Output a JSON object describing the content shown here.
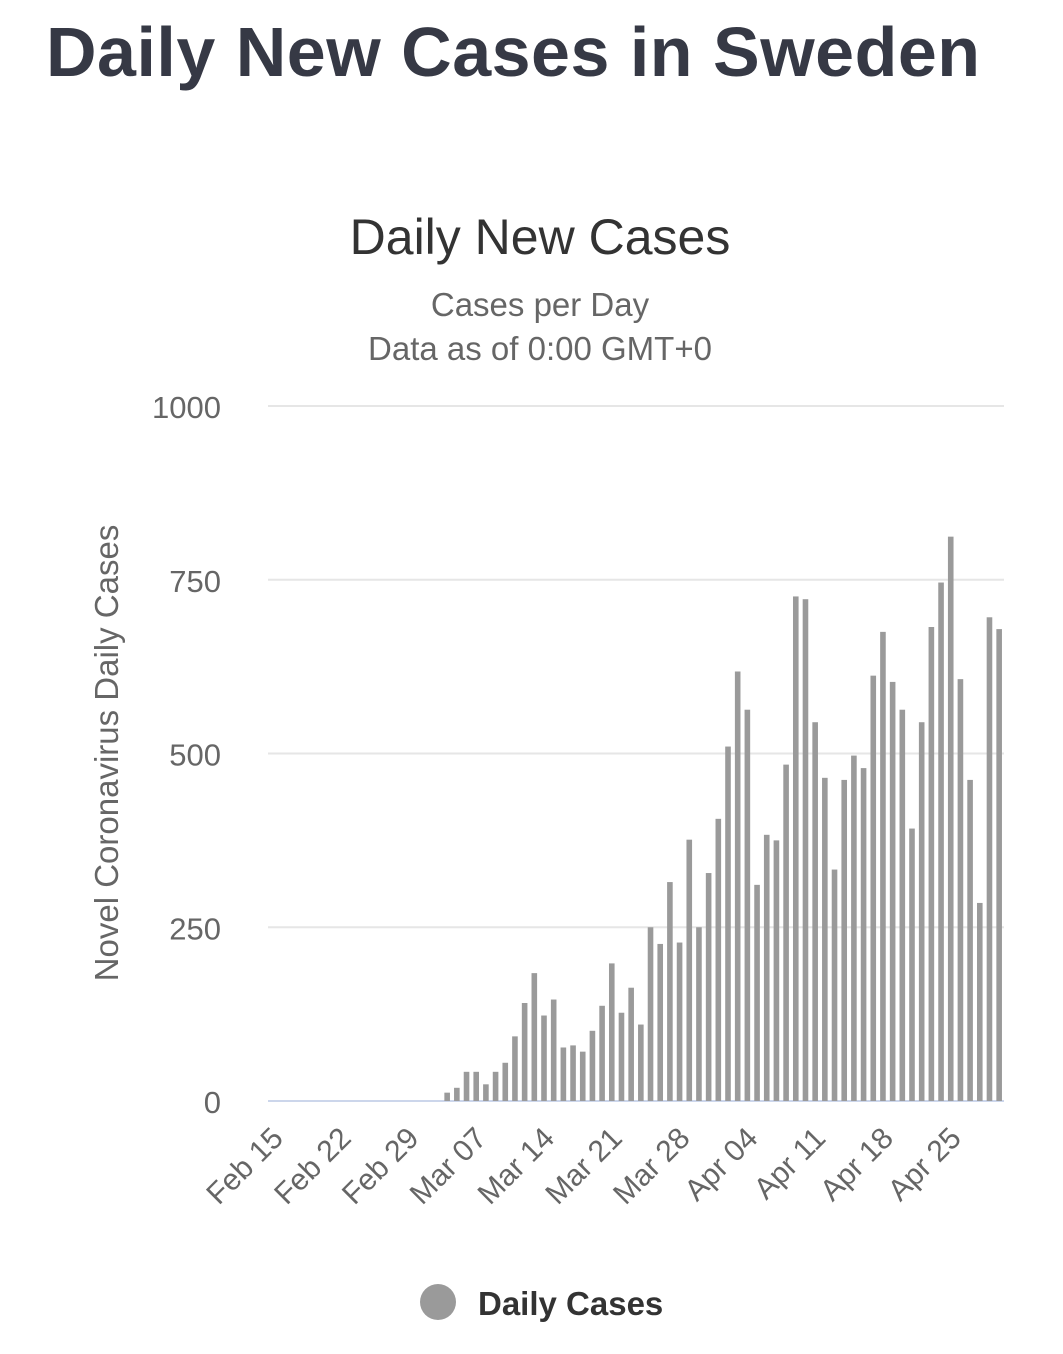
{
  "page": {
    "title": "Daily New Cases in Sweden"
  },
  "colors": {
    "bar": "#9a9a9a",
    "grid": "#e6e6e6",
    "axis_line": "#ccd6eb",
    "text": "#333333",
    "muted": "#666666",
    "title": "#363945"
  },
  "chart_data": {
    "type": "bar",
    "title": "Daily New Cases",
    "subtitle_lines": [
      "Cases per Day",
      "Data as of 0:00 GMT+0"
    ],
    "ylabel": "Novel Coronavirus Daily Cases",
    "xlabel": "",
    "ylim": [
      0,
      1000
    ],
    "yticks": [
      0,
      250,
      500,
      750,
      1000
    ],
    "grid": true,
    "legend": {
      "position": "bottom-center",
      "label": "Daily Cases"
    },
    "categories": [
      "Feb 15",
      "Feb 16",
      "Feb 17",
      "Feb 18",
      "Feb 19",
      "Feb 20",
      "Feb 21",
      "Feb 22",
      "Feb 23",
      "Feb 24",
      "Feb 25",
      "Feb 26",
      "Feb 27",
      "Feb 28",
      "Feb 29",
      "Mar 01",
      "Mar 02",
      "Mar 03",
      "Mar 04",
      "Mar 05",
      "Mar 06",
      "Mar 07",
      "Mar 08",
      "Mar 09",
      "Mar 10",
      "Mar 11",
      "Mar 12",
      "Mar 13",
      "Mar 14",
      "Mar 15",
      "Mar 16",
      "Mar 17",
      "Mar 18",
      "Mar 19",
      "Mar 20",
      "Mar 21",
      "Mar 22",
      "Mar 23",
      "Mar 24",
      "Mar 25",
      "Mar 26",
      "Mar 27",
      "Mar 28",
      "Mar 29",
      "Mar 30",
      "Mar 31",
      "Apr 01",
      "Apr 02",
      "Apr 03",
      "Apr 04",
      "Apr 05",
      "Apr 06",
      "Apr 07",
      "Apr 08",
      "Apr 09",
      "Apr 10",
      "Apr 11",
      "Apr 12",
      "Apr 13",
      "Apr 14",
      "Apr 15",
      "Apr 16",
      "Apr 17",
      "Apr 18",
      "Apr 19",
      "Apr 20",
      "Apr 21",
      "Apr 22",
      "Apr 23",
      "Apr 24",
      "Apr 25",
      "Apr 26",
      "Apr 27",
      "Apr 28",
      "Apr 29",
      "Apr 30"
    ],
    "tick_labels": [
      "Feb 15",
      "Feb 22",
      "Feb 29",
      "Mar 07",
      "Mar 14",
      "Mar 21",
      "Mar 28",
      "Apr 04",
      "Apr 11",
      "Apr 18",
      "Apr 25"
    ],
    "series": [
      {
        "name": "Daily Cases",
        "values": [
          0,
          0,
          0,
          0,
          0,
          0,
          0,
          0,
          0,
          0,
          0,
          0,
          0,
          0,
          0,
          0,
          0,
          0,
          12,
          19,
          42,
          42,
          24,
          42,
          55,
          93,
          141,
          184,
          123,
          146,
          77,
          80,
          71,
          101,
          137,
          198,
          127,
          163,
          110,
          250,
          226,
          315,
          228,
          376,
          250,
          328,
          406,
          510,
          618,
          563,
          311,
          383,
          375,
          484,
          726,
          722,
          545,
          465,
          333,
          462,
          497,
          479,
          612,
          675,
          603,
          563,
          392,
          545,
          682,
          746,
          812,
          607,
          462,
          285,
          696,
          679
        ]
      }
    ]
  }
}
